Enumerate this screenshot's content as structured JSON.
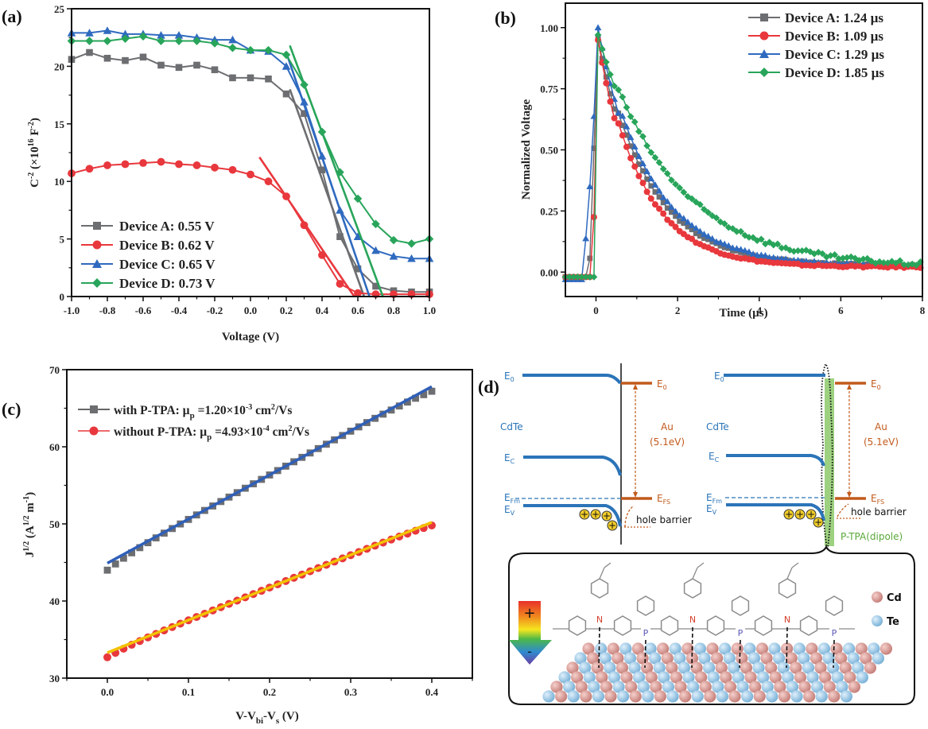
{
  "chart_data": [
    {
      "panel": "(a)",
      "type": "line",
      "title": "",
      "xlabel": "Voltage (V)",
      "ylabel": "C^-2 (×10^16 F^-2)",
      "xlim": [
        -1.0,
        1.0
      ],
      "ylim": [
        0,
        25
      ],
      "xticks": [
        "-1.0",
        "-0.8",
        "-0.6",
        "-0.4",
        "-0.2",
        "0.0",
        "0.2",
        "0.4",
        "0.6",
        "0.8",
        "1.0"
      ],
      "yticks": [
        "0",
        "5",
        "10",
        "15",
        "20",
        "25"
      ],
      "legend_position": "bottom-left",
      "x": [
        -1.0,
        -0.9,
        -0.8,
        -0.7,
        -0.6,
        -0.5,
        -0.4,
        -0.3,
        -0.2,
        -0.1,
        0.0,
        0.1,
        0.2,
        0.3,
        0.4,
        0.5,
        0.6,
        0.7,
        0.8,
        0.9,
        1.0
      ],
      "series": [
        {
          "name": "Device A: 0.55 V",
          "color": "#6d6e71",
          "marker": "square",
          "values": [
            20.6,
            21.2,
            20.7,
            20.5,
            20.8,
            20.1,
            19.9,
            20.1,
            19.7,
            19.0,
            19.0,
            18.9,
            17.6,
            15.9,
            11.0,
            5.2,
            2.4,
            0.9,
            0.5,
            0.4,
            0.4
          ],
          "fit": {
            "x": [
              0.22,
              0.635
            ],
            "y": [
              18.0,
              0.0
            ]
          }
        },
        {
          "name": "Device B: 0.62 V",
          "color": "#e8383d",
          "marker": "circle",
          "values": [
            10.7,
            11.1,
            11.4,
            11.5,
            11.6,
            11.7,
            11.5,
            11.4,
            11.2,
            11.0,
            10.6,
            10.0,
            8.7,
            6.2,
            3.6,
            1.1,
            0.3,
            0.2,
            0.2,
            0.2,
            0.2
          ],
          "fit": {
            "x": [
              0.05,
              0.58
            ],
            "y": [
              12.1,
              0.0
            ]
          }
        },
        {
          "name": "Device C: 0.65 V",
          "color": "#2f6abf",
          "marker": "triangle",
          "values": [
            22.9,
            22.9,
            23.1,
            22.8,
            22.8,
            22.7,
            22.7,
            22.5,
            22.3,
            22.3,
            21.4,
            21.3,
            20.0,
            16.9,
            12.2,
            7.5,
            5.2,
            4.0,
            3.5,
            3.3,
            3.3
          ],
          "fit": {
            "x": [
              0.2,
              0.665
            ],
            "y": [
              21.2,
              0.0
            ]
          }
        },
        {
          "name": "Device D: 0.73 V",
          "color": "#28a55a",
          "marker": "diamond",
          "values": [
            22.2,
            22.2,
            22.2,
            22.4,
            22.6,
            22.2,
            22.2,
            22.2,
            22.0,
            21.6,
            21.4,
            21.4,
            21.0,
            18.4,
            14.3,
            10.8,
            8.5,
            6.3,
            4.9,
            4.6,
            5.0
          ],
          "fit": {
            "x": [
              0.22,
              0.74
            ],
            "y": [
              21.8,
              0.0
            ]
          }
        }
      ]
    },
    {
      "panel": "(b)",
      "type": "line",
      "title": "",
      "xlabel": "Time (µs)",
      "ylabel": "Normalized Voltage",
      "xlim": [
        -0.75,
        8
      ],
      "ylim": [
        -0.1,
        1.1
      ],
      "xticks": [
        "0",
        "2",
        "4",
        "6",
        "8"
      ],
      "yticks": [
        "0.00",
        "0.25",
        "0.50",
        "0.75",
        "1.00"
      ],
      "legend_position": "top-right",
      "series": [
        {
          "name": "Device A: 1.24 µs",
          "color": "#6d6e71",
          "marker": "square",
          "peak_time": 0.0,
          "rise_start": -0.2,
          "tau": 1.24,
          "tail": 0.025
        },
        {
          "name": "Device B: 1.09 µs",
          "color": "#e8383d",
          "marker": "circle",
          "peak_time": 0.0,
          "rise_start": -0.1,
          "tau": 1.09,
          "tail": 0.02
        },
        {
          "name": "Device C: 1.29 µs",
          "color": "#2f6abf",
          "marker": "triangle",
          "peak_time": 0.05,
          "rise_start": -0.35,
          "tau": 1.29,
          "tail": 0.025
        },
        {
          "name": "Device D: 1.85 µs",
          "color": "#28a55a",
          "marker": "diamond",
          "peak_time": 0.0,
          "rise_start": -0.05,
          "tau": 1.85,
          "tail": 0.02
        }
      ]
    },
    {
      "panel": "(c)",
      "type": "scatter",
      "title": "",
      "xlabel": "V-V_bi-V_s (V)",
      "ylabel": "J^1/2 (A^1/2 m^-1)",
      "xlim": [
        -0.05,
        0.45
      ],
      "ylim": [
        30,
        70
      ],
      "xticks": [
        "0.0",
        "0.1",
        "0.2",
        "0.3",
        "0.4"
      ],
      "yticks": [
        "30",
        "40",
        "50",
        "60",
        "70"
      ],
      "legend_position": "top-left",
      "series": [
        {
          "name": "with P-TPA: µp =1.20×10⁻³ cm²/Vs",
          "color": "#6d6e71",
          "marker": "square",
          "fit_color": "#2f5fb8",
          "start": [
            0.0,
            44.0
          ],
          "end": [
            0.4,
            67.2
          ],
          "fit": {
            "x": [
              0.0,
              0.4
            ],
            "y": [
              44.9,
              67.8
            ]
          },
          "step": 0.01
        },
        {
          "name": "without P-TPA: µp =4.93×10⁻⁴ cm²/Vs",
          "color": "#e8383d",
          "marker": "circle",
          "fit_color": "#f2c200",
          "start": [
            0.0,
            32.7
          ],
          "end": [
            0.4,
            49.8
          ],
          "fit": {
            "x": [
              0.0,
              0.4
            ],
            "y": [
              33.3,
              50.2
            ]
          },
          "step": 0.01
        }
      ]
    }
  ],
  "panels": {
    "a_label": "(a)",
    "b_label": "(b)",
    "c_label": "(c)",
    "d_label": "(d)"
  },
  "legend_a": [
    "Device A: 0.55 V",
    "Device B: 0.62 V",
    "Device C: 0.65 V",
    "Device D: 0.73 V"
  ],
  "legend_b": [
    "Device A: 1.24 µs",
    "Device B: 1.09 µs",
    "Device C: 1.29 µs",
    "Device D: 1.85 µs"
  ],
  "legend_c": {
    "with_prefix": "with P-TPA: µ",
    "with_sub": "p",
    "with_value": " =1.20×10",
    "with_exp": "-3",
    "with_unit": " cm",
    "with_unit_exp": "2",
    "with_unit_end": "/Vs",
    "without_prefix": "without P-TPA: µ",
    "without_sub": "p",
    "without_value": " =4.93×10",
    "without_exp": "-4",
    "without_unit": " cm",
    "without_unit_exp": "2",
    "without_unit_end": "/Vs"
  },
  "axis_labels": {
    "a_x": "Voltage (V)",
    "a_y_main": "C",
    "a_y_exp": "-2",
    "a_y_mid": " (×10",
    "a_y_exp2": "16",
    "a_y_unit": " F",
    "a_y_exp3": "-2",
    "a_y_end": ")",
    "b_x": "Time (µs)",
    "b_y": "Normalized Voltage",
    "c_x_main": "V-V",
    "c_x_sub1": "bi",
    "c_x_mid": "-V",
    "c_x_sub2": "s",
    "c_x_end": " (V)",
    "c_y_main": "J",
    "c_y_exp": "1/2",
    "c_y_mid": " (A",
    "c_y_exp2": "1/2",
    "c_y_unit": " m",
    "c_y_exp3": "-1",
    "c_y_end": ")"
  },
  "diagram_d": {
    "left": {
      "e0": "E",
      "e0_sub": "0",
      "material": "CdTe",
      "ec": "E",
      "ec_sub": "C",
      "efm": "E",
      "efm_sub": "Fm",
      "ev": "E",
      "ev_sub": "V",
      "metal_e0": "E",
      "metal_e0_sub": "0",
      "metal": "Au",
      "metal_wf": "(5.1eV)",
      "efs": "E",
      "efs_sub": "FS",
      "barrier": "hole barrier",
      "holes": [
        "+",
        "+",
        "+",
        "+"
      ]
    },
    "right": {
      "e0": "E",
      "e0_sub": "0",
      "material": "CdTe",
      "ec": "E",
      "ec_sub": "C",
      "efm": "E",
      "efm_sub": "Fm",
      "ev": "E",
      "ev_sub": "V",
      "metal_e0": "E",
      "metal_e0_sub": "0",
      "metal": "Au",
      "metal_wf": "(5.1eV)",
      "efs": "E",
      "efs_sub": "FS",
      "barrier": "hole barrier",
      "dipole_label": "P-TPA(dipole)",
      "holes": [
        "+",
        "+",
        "+",
        "+"
      ]
    },
    "molecule": {
      "atoms": [
        "N",
        "P",
        "N",
        "P",
        "N",
        "P"
      ]
    },
    "dipole_arrow": {
      "plus": "+",
      "minus": "-"
    },
    "legend": [
      {
        "label": "Cd",
        "color": "#d98a86"
      },
      {
        "label": "Te",
        "color": "#8fc3e6"
      }
    ]
  },
  "colors": {
    "device_a": "#6d6e71",
    "device_b": "#e8383d",
    "device_c": "#2f6abf",
    "device_d": "#28a55a",
    "band_blue": "#2b74b8",
    "metal_orange": "#c25a1c",
    "dipole_green": "#8cc96a",
    "fit_blue": "#2f5fb8",
    "fit_yellow": "#f2c200"
  }
}
